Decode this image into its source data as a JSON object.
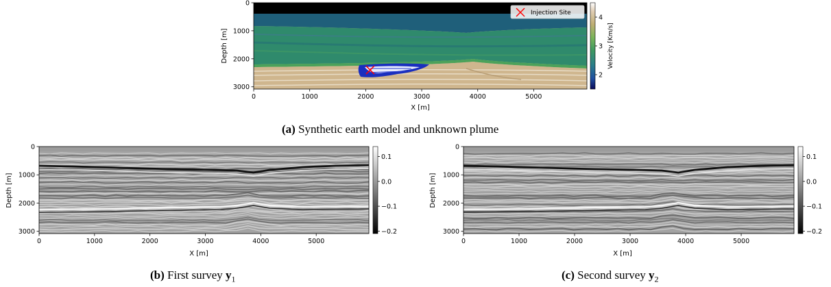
{
  "figure": {
    "panel_a": {
      "caption_letter": "(a)",
      "caption_text": "Synthetic earth model and unknown plume",
      "chart_data": {
        "type": "heatmap",
        "title": "",
        "xlabel": "X [m]",
        "ylabel": "Depth [m]",
        "xlim": [
          0,
          5950
        ],
        "ylim": [
          3080,
          0
        ],
        "xticks": [
          "0",
          "1000",
          "2000",
          "3000",
          "4000",
          "5000"
        ],
        "yticks": [
          "0",
          "1000",
          "2000",
          "3000"
        ],
        "colorbar": {
          "label": "Velocity [Km/s]",
          "range": [
            1.5,
            4.5
          ],
          "ticks": [
            "2",
            "3",
            "4"
          ],
          "colormap": "gist_earth"
        },
        "legend": {
          "label": "Injection Site",
          "placement": "top-right",
          "marker": "x",
          "color": "#ff0000"
        },
        "injection_site": {
          "x": 2080,
          "y": 2400
        },
        "layers": [
          {
            "top": 0,
            "bottom": 380,
            "velocity": 1.5,
            "color": "#000000"
          },
          {
            "top": 380,
            "bottom": 800,
            "velocity": 2.4,
            "color": "#1f5f7a"
          },
          {
            "top": 800,
            "bottom": 1700,
            "velocity": 2.9,
            "color": "#2f8a6c"
          },
          {
            "top": 1700,
            "bottom": 2250,
            "velocity": 3.3,
            "color": "#4ba25a"
          },
          {
            "top": 2250,
            "bottom": 3080,
            "velocity": 4.0,
            "color": "#cfb68e"
          }
        ]
      }
    },
    "panel_b": {
      "caption_letter": "(b)",
      "caption_text": "First survey ",
      "caption_symbol": "y",
      "caption_sub": "1",
      "chart_data": {
        "type": "heatmap",
        "title": "",
        "xlabel": "X [m]",
        "ylabel": "Depth [m]",
        "xlim": [
          0,
          5950
        ],
        "ylim": [
          3080,
          0
        ],
        "xticks": [
          "0",
          "1000",
          "2000",
          "3000",
          "4000",
          "5000"
        ],
        "yticks": [
          "0",
          "1000",
          "2000",
          "3000"
        ],
        "colorbar": {
          "range": [
            -0.21,
            0.14
          ],
          "ticks": [
            "0.1",
            "0.0",
            "−0.1",
            "−0.2"
          ],
          "colormap": "gray"
        }
      }
    },
    "panel_c": {
      "caption_letter": "(c)",
      "caption_text": "Second survey ",
      "caption_symbol": "y",
      "caption_sub": "2",
      "chart_data": {
        "type": "heatmap",
        "title": "",
        "xlabel": "X [m]",
        "ylabel": "Depth [m]",
        "xlim": [
          0,
          5950
        ],
        "ylim": [
          3080,
          0
        ],
        "xticks": [
          "0",
          "1000",
          "2000",
          "3000",
          "4000",
          "5000"
        ],
        "yticks": [
          "0",
          "1000",
          "2000",
          "3000"
        ],
        "colorbar": {
          "range": [
            -0.21,
            0.14
          ],
          "ticks": [
            "0.1",
            "0.0",
            "−0.1",
            "−0.2"
          ],
          "colormap": "gray"
        }
      }
    }
  }
}
